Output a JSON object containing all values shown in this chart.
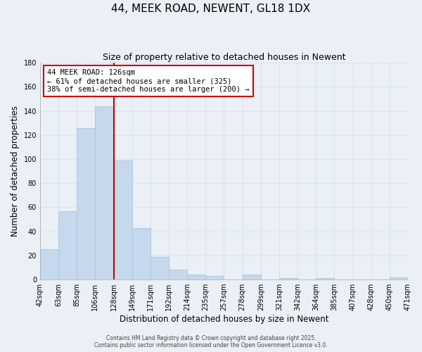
{
  "title": "44, MEEK ROAD, NEWENT, GL18 1DX",
  "subtitle": "Size of property relative to detached houses in Newent",
  "xlabel": "Distribution of detached houses by size in Newent",
  "ylabel": "Number of detached properties",
  "bar_labels": [
    "42sqm",
    "63sqm",
    "85sqm",
    "106sqm",
    "128sqm",
    "149sqm",
    "171sqm",
    "192sqm",
    "214sqm",
    "235sqm",
    "257sqm",
    "278sqm",
    "299sqm",
    "321sqm",
    "342sqm",
    "364sqm",
    "385sqm",
    "407sqm",
    "428sqm",
    "450sqm",
    "471sqm"
  ],
  "bar_values": [
    25,
    57,
    126,
    144,
    99,
    43,
    19,
    8,
    4,
    3,
    0,
    4,
    0,
    1,
    0,
    1,
    0,
    0,
    0,
    2
  ],
  "bar_color": "#c6d9ec",
  "bar_edge_color": "#a8c4de",
  "ylim": [
    0,
    180
  ],
  "yticks": [
    0,
    20,
    40,
    60,
    80,
    100,
    120,
    140,
    160,
    180
  ],
  "vline_x": 4,
  "vline_color": "#cc0000",
  "annotation_title": "44 MEEK ROAD: 126sqm",
  "annotation_line1": "← 61% of detached houses are smaller (325)",
  "annotation_line2": "38% of semi-detached houses are larger (200) →",
  "annotation_box_color": "#ffffff",
  "annotation_box_edge": "#cc0000",
  "footer1": "Contains HM Land Registry data © Crown copyright and database right 2025.",
  "footer2": "Contains public sector information licensed under the Open Government Licence v3.0.",
  "bg_color": "#eaf0f6",
  "grid_color": "#d8e4f0",
  "title_fontsize": 11,
  "subtitle_fontsize": 9,
  "axis_label_fontsize": 8.5,
  "tick_fontsize": 7,
  "annotation_fontsize": 7.5,
  "footer_fontsize": 5.5
}
